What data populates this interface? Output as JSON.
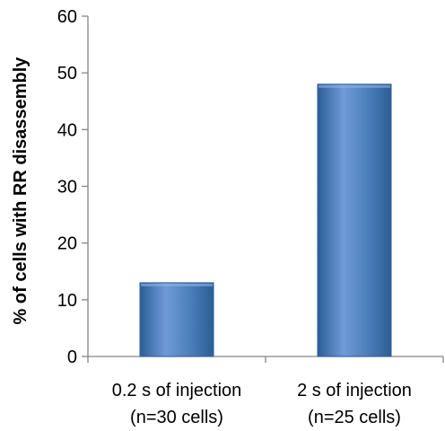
{
  "chart_data": {
    "type": "bar",
    "categories": [
      [
        "0.2 s of injection",
        "(n=30 cells)"
      ],
      [
        "2 s of injection",
        "(n=25 cells)"
      ]
    ],
    "values": [
      13,
      48
    ],
    "ylabel": "% of cells with RR disassembly",
    "xlabel": "",
    "title": "",
    "ylim": [
      0,
      60
    ],
    "yticks": [
      0,
      10,
      20,
      30,
      40,
      50,
      60
    ],
    "grid": false,
    "legend": "none",
    "bar_color": "#4f81bd",
    "bar_color_dark": "#2c5d96",
    "bar_color_light": "#6f9bd8"
  }
}
